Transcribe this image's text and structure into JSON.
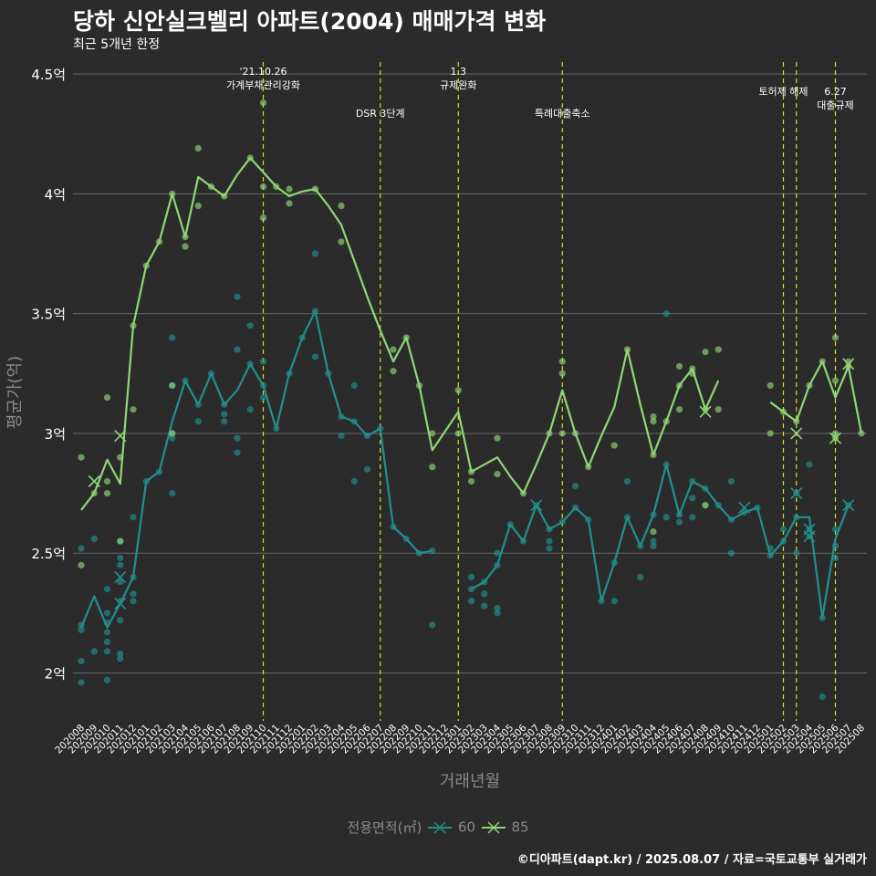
{
  "title": "당하 신안실크벨리 아파트(2004) 매매가격 변화",
  "subtitle": "최근 5개년 한정",
  "caption": "©디아파트(dapt.kr) / 2025.08.07 / 자료=국토교통부 실거래가",
  "colors": {
    "s60": "#21908d",
    "s85": "#8fd774",
    "event": "#d9e021",
    "grid": "#666666",
    "bg": "#2b2b2b"
  },
  "chart_data": {
    "type": "line",
    "xlabel": "거래년월",
    "ylabel": "평균가(억)",
    "ylim": [
      1.8,
      4.55
    ],
    "yticks": [
      2,
      2.5,
      3,
      3.5,
      4,
      4.5
    ],
    "ytick_labels": [
      "2억",
      "2.5억",
      "3억",
      "3.5억",
      "4억",
      "4.5억"
    ],
    "legend_title": "전용면적(㎡)",
    "legend_position": "bottom",
    "categories": [
      "202008",
      "202009",
      "202010",
      "202011",
      "202012",
      "202101",
      "202102",
      "202103",
      "202104",
      "202105",
      "202106",
      "202107",
      "202108",
      "202109",
      "202110",
      "202111",
      "202112",
      "202201",
      "202202",
      "202203",
      "202204",
      "202205",
      "202206",
      "202207",
      "202208",
      "202209",
      "202210",
      "202211",
      "202212",
      "202301",
      "202302",
      "202303",
      "202304",
      "202305",
      "202306",
      "202307",
      "202308",
      "202309",
      "202310",
      "202311",
      "202312",
      "202401",
      "202402",
      "202403",
      "202404",
      "202405",
      "202406",
      "202407",
      "202408",
      "202409",
      "202410",
      "202411",
      "202412",
      "202501",
      "202502",
      "202503",
      "202504",
      "202505",
      "202506",
      "202507",
      "202508"
    ],
    "events": [
      {
        "label": "'21.10.26\n가계부채관리강화",
        "x": 14.0
      },
      {
        "label": "DSR 3단계",
        "x": 23.0
      },
      {
        "label": "1.3\n규제완화",
        "x": 29.0
      },
      {
        "label": "특례대출축소",
        "x": 37.0
      },
      {
        "label": "토허제 해제",
        "x": 54.0
      },
      {
        "label": "",
        "x": 55.0
      },
      {
        "label": "6.27\n대출규제",
        "x": 58.0
      }
    ],
    "series": [
      {
        "name": "60",
        "color": "#21908d",
        "values": [
          2.19,
          2.32,
          2.19,
          2.29,
          2.4,
          2.8,
          2.84,
          3.05,
          3.22,
          3.12,
          3.25,
          3.12,
          3.18,
          3.29,
          3.2,
          3.02,
          3.25,
          3.4,
          3.51,
          3.25,
          3.07,
          3.05,
          2.99,
          3.02,
          2.61,
          2.56,
          2.5,
          2.51,
          null,
          null,
          2.35,
          2.38,
          2.45,
          2.62,
          2.55,
          2.7,
          2.6,
          2.63,
          2.69,
          2.64,
          2.3,
          2.46,
          2.65,
          2.53,
          2.66,
          2.87,
          2.66,
          2.8,
          2.77,
          2.7,
          2.64,
          2.67,
          2.69,
          2.49,
          2.55,
          2.65,
          2.65,
          2.23,
          2.56,
          2.7,
          null
        ],
        "transactions": [
          [
            0,
            2.05
          ],
          [
            0,
            1.96
          ],
          [
            0,
            2.52
          ],
          [
            0,
            2.2
          ],
          [
            0,
            2.18
          ],
          [
            1,
            2.09
          ],
          [
            1,
            2.56
          ],
          [
            2,
            2.25
          ],
          [
            2,
            2.21
          ],
          [
            2,
            1.97
          ],
          [
            2,
            2.09
          ],
          [
            2,
            2.13
          ],
          [
            2,
            2.35
          ],
          [
            2,
            2.17
          ],
          [
            3,
            2.3
          ],
          [
            3,
            2.22
          ],
          [
            3,
            2.06
          ],
          [
            3,
            2.38
          ],
          [
            3,
            2.45
          ],
          [
            3,
            2.48
          ],
          [
            3,
            2.08
          ],
          [
            3,
            2.55
          ],
          [
            4,
            2.65
          ],
          [
            4,
            2.4
          ],
          [
            4,
            2.3
          ],
          [
            4,
            2.33
          ],
          [
            5,
            2.8
          ],
          [
            6,
            2.84
          ],
          [
            7,
            2.75
          ],
          [
            7,
            2.98
          ],
          [
            7,
            3.0
          ],
          [
            7,
            3.2
          ],
          [
            7,
            3.4
          ],
          [
            8,
            3.22
          ],
          [
            9,
            3.12
          ],
          [
            9,
            3.05
          ],
          [
            10,
            3.25
          ],
          [
            11,
            3.12
          ],
          [
            11,
            3.05
          ],
          [
            11,
            3.08
          ],
          [
            12,
            3.35
          ],
          [
            12,
            3.57
          ],
          [
            12,
            2.92
          ],
          [
            12,
            2.98
          ],
          [
            13,
            3.29
          ],
          [
            13,
            3.45
          ],
          [
            13,
            3.1
          ],
          [
            14,
            3.2
          ],
          [
            14,
            3.3
          ],
          [
            14,
            3.15
          ],
          [
            15,
            3.02
          ],
          [
            16,
            3.25
          ],
          [
            17,
            3.4
          ],
          [
            18,
            3.51
          ],
          [
            18,
            3.75
          ],
          [
            18,
            3.32
          ],
          [
            19,
            3.25
          ],
          [
            20,
            3.07
          ],
          [
            20,
            2.99
          ],
          [
            21,
            3.05
          ],
          [
            21,
            3.2
          ],
          [
            21,
            2.8
          ],
          [
            22,
            2.99
          ],
          [
            22,
            2.85
          ],
          [
            23,
            3.02
          ],
          [
            24,
            2.61
          ],
          [
            25,
            2.56
          ],
          [
            26,
            2.5
          ],
          [
            27,
            2.51
          ],
          [
            27,
            2.2
          ],
          [
            30,
            2.35
          ],
          [
            30,
            2.3
          ],
          [
            30,
            2.4
          ],
          [
            31,
            2.38
          ],
          [
            31,
            2.33
          ],
          [
            31,
            2.28
          ],
          [
            32,
            2.45
          ],
          [
            32,
            2.5
          ],
          [
            32,
            2.25
          ],
          [
            32,
            2.27
          ],
          [
            33,
            2.62
          ],
          [
            34,
            2.55
          ],
          [
            35,
            2.7
          ],
          [
            36,
            2.6
          ],
          [
            36,
            2.52
          ],
          [
            36,
            2.55
          ],
          [
            37,
            2.63
          ],
          [
            38,
            2.69
          ],
          [
            38,
            2.78
          ],
          [
            39,
            2.64
          ],
          [
            40,
            2.3
          ],
          [
            41,
            2.46
          ],
          [
            41,
            2.3
          ],
          [
            42,
            2.65
          ],
          [
            42,
            2.8
          ],
          [
            43,
            2.53
          ],
          [
            43,
            2.4
          ],
          [
            44,
            2.66
          ],
          [
            44,
            2.55
          ],
          [
            44,
            2.53
          ],
          [
            45,
            2.87
          ],
          [
            45,
            3.5
          ],
          [
            45,
            2.65
          ],
          [
            46,
            2.66
          ],
          [
            46,
            2.63
          ],
          [
            47,
            2.8
          ],
          [
            47,
            2.65
          ],
          [
            47,
            2.73
          ],
          [
            48,
            2.77
          ],
          [
            48,
            2.7
          ],
          [
            49,
            2.7
          ],
          [
            50,
            2.64
          ],
          [
            50,
            2.5
          ],
          [
            50,
            2.8
          ],
          [
            51,
            2.67
          ],
          [
            52,
            2.69
          ],
          [
            53,
            2.49
          ],
          [
            53,
            2.52
          ],
          [
            54,
            2.55
          ],
          [
            54,
            2.6
          ],
          [
            55,
            2.65
          ],
          [
            55,
            2.5
          ],
          [
            55,
            2.75
          ],
          [
            56,
            2.6
          ],
          [
            56,
            2.57
          ],
          [
            56,
            2.87
          ],
          [
            57,
            1.9
          ],
          [
            57,
            2.23
          ],
          [
            58,
            2.48
          ],
          [
            58,
            2.53
          ],
          [
            58,
            2.6
          ],
          [
            59,
            2.7
          ]
        ],
        "cancelled": [
          [
            1,
            2.8
          ],
          [
            3,
            2.4
          ],
          [
            3,
            2.29
          ],
          [
            35,
            2.7
          ],
          [
            51,
            2.69
          ],
          [
            55,
            2.75
          ],
          [
            56,
            2.6
          ],
          [
            56,
            2.57
          ],
          [
            59,
            2.7
          ]
        ]
      },
      {
        "name": "85",
        "color": "#8fd774",
        "values": [
          2.68,
          2.75,
          2.89,
          2.79,
          3.45,
          3.7,
          3.8,
          4.0,
          3.82,
          4.07,
          4.03,
          3.99,
          4.08,
          4.15,
          4.09,
          4.03,
          3.99,
          4.01,
          4.02,
          3.95,
          3.87,
          3.72,
          3.57,
          3.43,
          3.3,
          3.4,
          3.2,
          2.93,
          3.01,
          3.09,
          2.84,
          2.87,
          2.9,
          2.82,
          2.75,
          2.87,
          3.0,
          3.18,
          3.0,
          2.86,
          2.99,
          3.11,
          3.35,
          3.12,
          2.91,
          3.05,
          3.2,
          3.27,
          3.1,
          3.22,
          null,
          null,
          null,
          3.13,
          3.09,
          3.05,
          3.2,
          3.3,
          3.15,
          3.28,
          3.0
        ],
        "transactions": [
          [
            0,
            2.9
          ],
          [
            0,
            2.45
          ],
          [
            1,
            2.75
          ],
          [
            2,
            3.15
          ],
          [
            2,
            2.8
          ],
          [
            2,
            2.75
          ],
          [
            3,
            2.9
          ],
          [
            3,
            2.55
          ],
          [
            4,
            3.45
          ],
          [
            4,
            3.1
          ],
          [
            5,
            3.7
          ],
          [
            6,
            3.8
          ],
          [
            7,
            4.0
          ],
          [
            7,
            3.2
          ],
          [
            7,
            3.0
          ],
          [
            8,
            3.82
          ],
          [
            8,
            3.78
          ],
          [
            9,
            4.19
          ],
          [
            9,
            3.95
          ],
          [
            10,
            4.03
          ],
          [
            11,
            3.99
          ],
          [
            13,
            4.15
          ],
          [
            14,
            4.03
          ],
          [
            14,
            3.9
          ],
          [
            14,
            4.38
          ],
          [
            15,
            4.03
          ],
          [
            16,
            4.02
          ],
          [
            16,
            3.96
          ],
          [
            18,
            4.02
          ],
          [
            20,
            3.95
          ],
          [
            20,
            3.8
          ],
          [
            24,
            3.35
          ],
          [
            24,
            3.26
          ],
          [
            25,
            3.4
          ],
          [
            26,
            3.2
          ],
          [
            27,
            3.0
          ],
          [
            27,
            2.86
          ],
          [
            29,
            3.18
          ],
          [
            29,
            3.0
          ],
          [
            30,
            2.84
          ],
          [
            30,
            2.8
          ],
          [
            32,
            2.98
          ],
          [
            32,
            2.83
          ],
          [
            34,
            2.75
          ],
          [
            36,
            3.0
          ],
          [
            37,
            3.3
          ],
          [
            37,
            3.25
          ],
          [
            37,
            3.0
          ],
          [
            38,
            3.0
          ],
          [
            39,
            2.86
          ],
          [
            41,
            2.95
          ],
          [
            42,
            3.35
          ],
          [
            44,
            2.91
          ],
          [
            44,
            2.59
          ],
          [
            44,
            3.05
          ],
          [
            44,
            3.07
          ],
          [
            45,
            3.05
          ],
          [
            46,
            3.28
          ],
          [
            46,
            3.2
          ],
          [
            46,
            3.1
          ],
          [
            47,
            3.25
          ],
          [
            47,
            3.27
          ],
          [
            48,
            3.34
          ],
          [
            48,
            3.1
          ],
          [
            48,
            2.7
          ],
          [
            49,
            3.35
          ],
          [
            49,
            3.1
          ],
          [
            53,
            3.2
          ],
          [
            53,
            3.0
          ],
          [
            54,
            3.09
          ],
          [
            55,
            3.05
          ],
          [
            56,
            3.2
          ],
          [
            57,
            3.3
          ],
          [
            58,
            3.4
          ],
          [
            58,
            3.22
          ],
          [
            58,
            3.0
          ],
          [
            58,
            2.98
          ],
          [
            59,
            3.3
          ],
          [
            59,
            3.28
          ],
          [
            60,
            3.0
          ]
        ],
        "cancelled": [
          [
            1,
            2.8
          ],
          [
            3,
            2.99
          ],
          [
            48,
            3.09
          ],
          [
            55,
            3.0
          ],
          [
            58,
            2.98
          ],
          [
            59,
            3.29
          ]
        ]
      }
    ]
  }
}
